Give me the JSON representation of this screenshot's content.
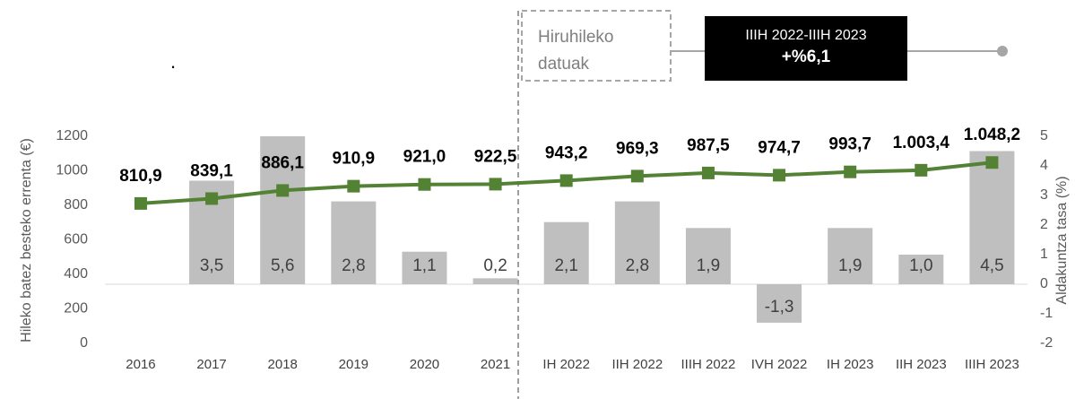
{
  "chart_data": {
    "type": "bar_line",
    "y_label": "Hileko batez besteko errenta (€)",
    "y2_label": "Aldakuntza tasa (%)",
    "annotations": {
      "dot": ".",
      "box_lines": [
        "Hiruhileko",
        "datuak"
      ],
      "highlight_title": "IIIH 2022-IIIH 2023",
      "highlight_value": "+%6,1"
    },
    "categories": [
      "2016",
      "2017",
      "2018",
      "2019",
      "2020",
      "2021",
      "IH 2022",
      "IIH 2022",
      "IIIH 2022",
      "IVH 2022",
      "IH 2023",
      "IIH 2023",
      "IIIH 2023"
    ],
    "series": [
      {
        "type": "bar",
        "axis": "y2",
        "color": "#bfbfbf",
        "values": [
          null,
          3.5,
          5.6,
          2.8,
          1.1,
          0.2,
          2.1,
          2.8,
          1.9,
          -1.3,
          1.9,
          1.0,
          4.5
        ],
        "value_labels": [
          null,
          "3,5",
          "5,6",
          "2,8",
          "1,1",
          "0,2",
          "2,1",
          "2,8",
          "1,9",
          "-1,3",
          "1,9",
          "1,0",
          "4,5"
        ]
      },
      {
        "type": "line",
        "axis": "y",
        "color": "#548235",
        "values": [
          810.9,
          839.1,
          886.1,
          910.9,
          921.0,
          922.5,
          943.2,
          969.3,
          987.5,
          974.7,
          993.7,
          1003.4,
          1048.2
        ],
        "value_labels": [
          "810,9",
          "839,1",
          "886,1",
          "910,9",
          "921,0",
          "922,5",
          "943,2",
          "969,3",
          "987,5",
          "974,7",
          "993,7",
          "1.003,4",
          "1.048,2"
        ]
      }
    ],
    "ylim": [
      0,
      1200
    ],
    "yticks": [
      0,
      200,
      400,
      600,
      800,
      1000,
      1200
    ],
    "y2lim": [
      -2,
      5
    ],
    "y2ticks": [
      -2,
      -1,
      0,
      1,
      2,
      3,
      4,
      5
    ]
  }
}
